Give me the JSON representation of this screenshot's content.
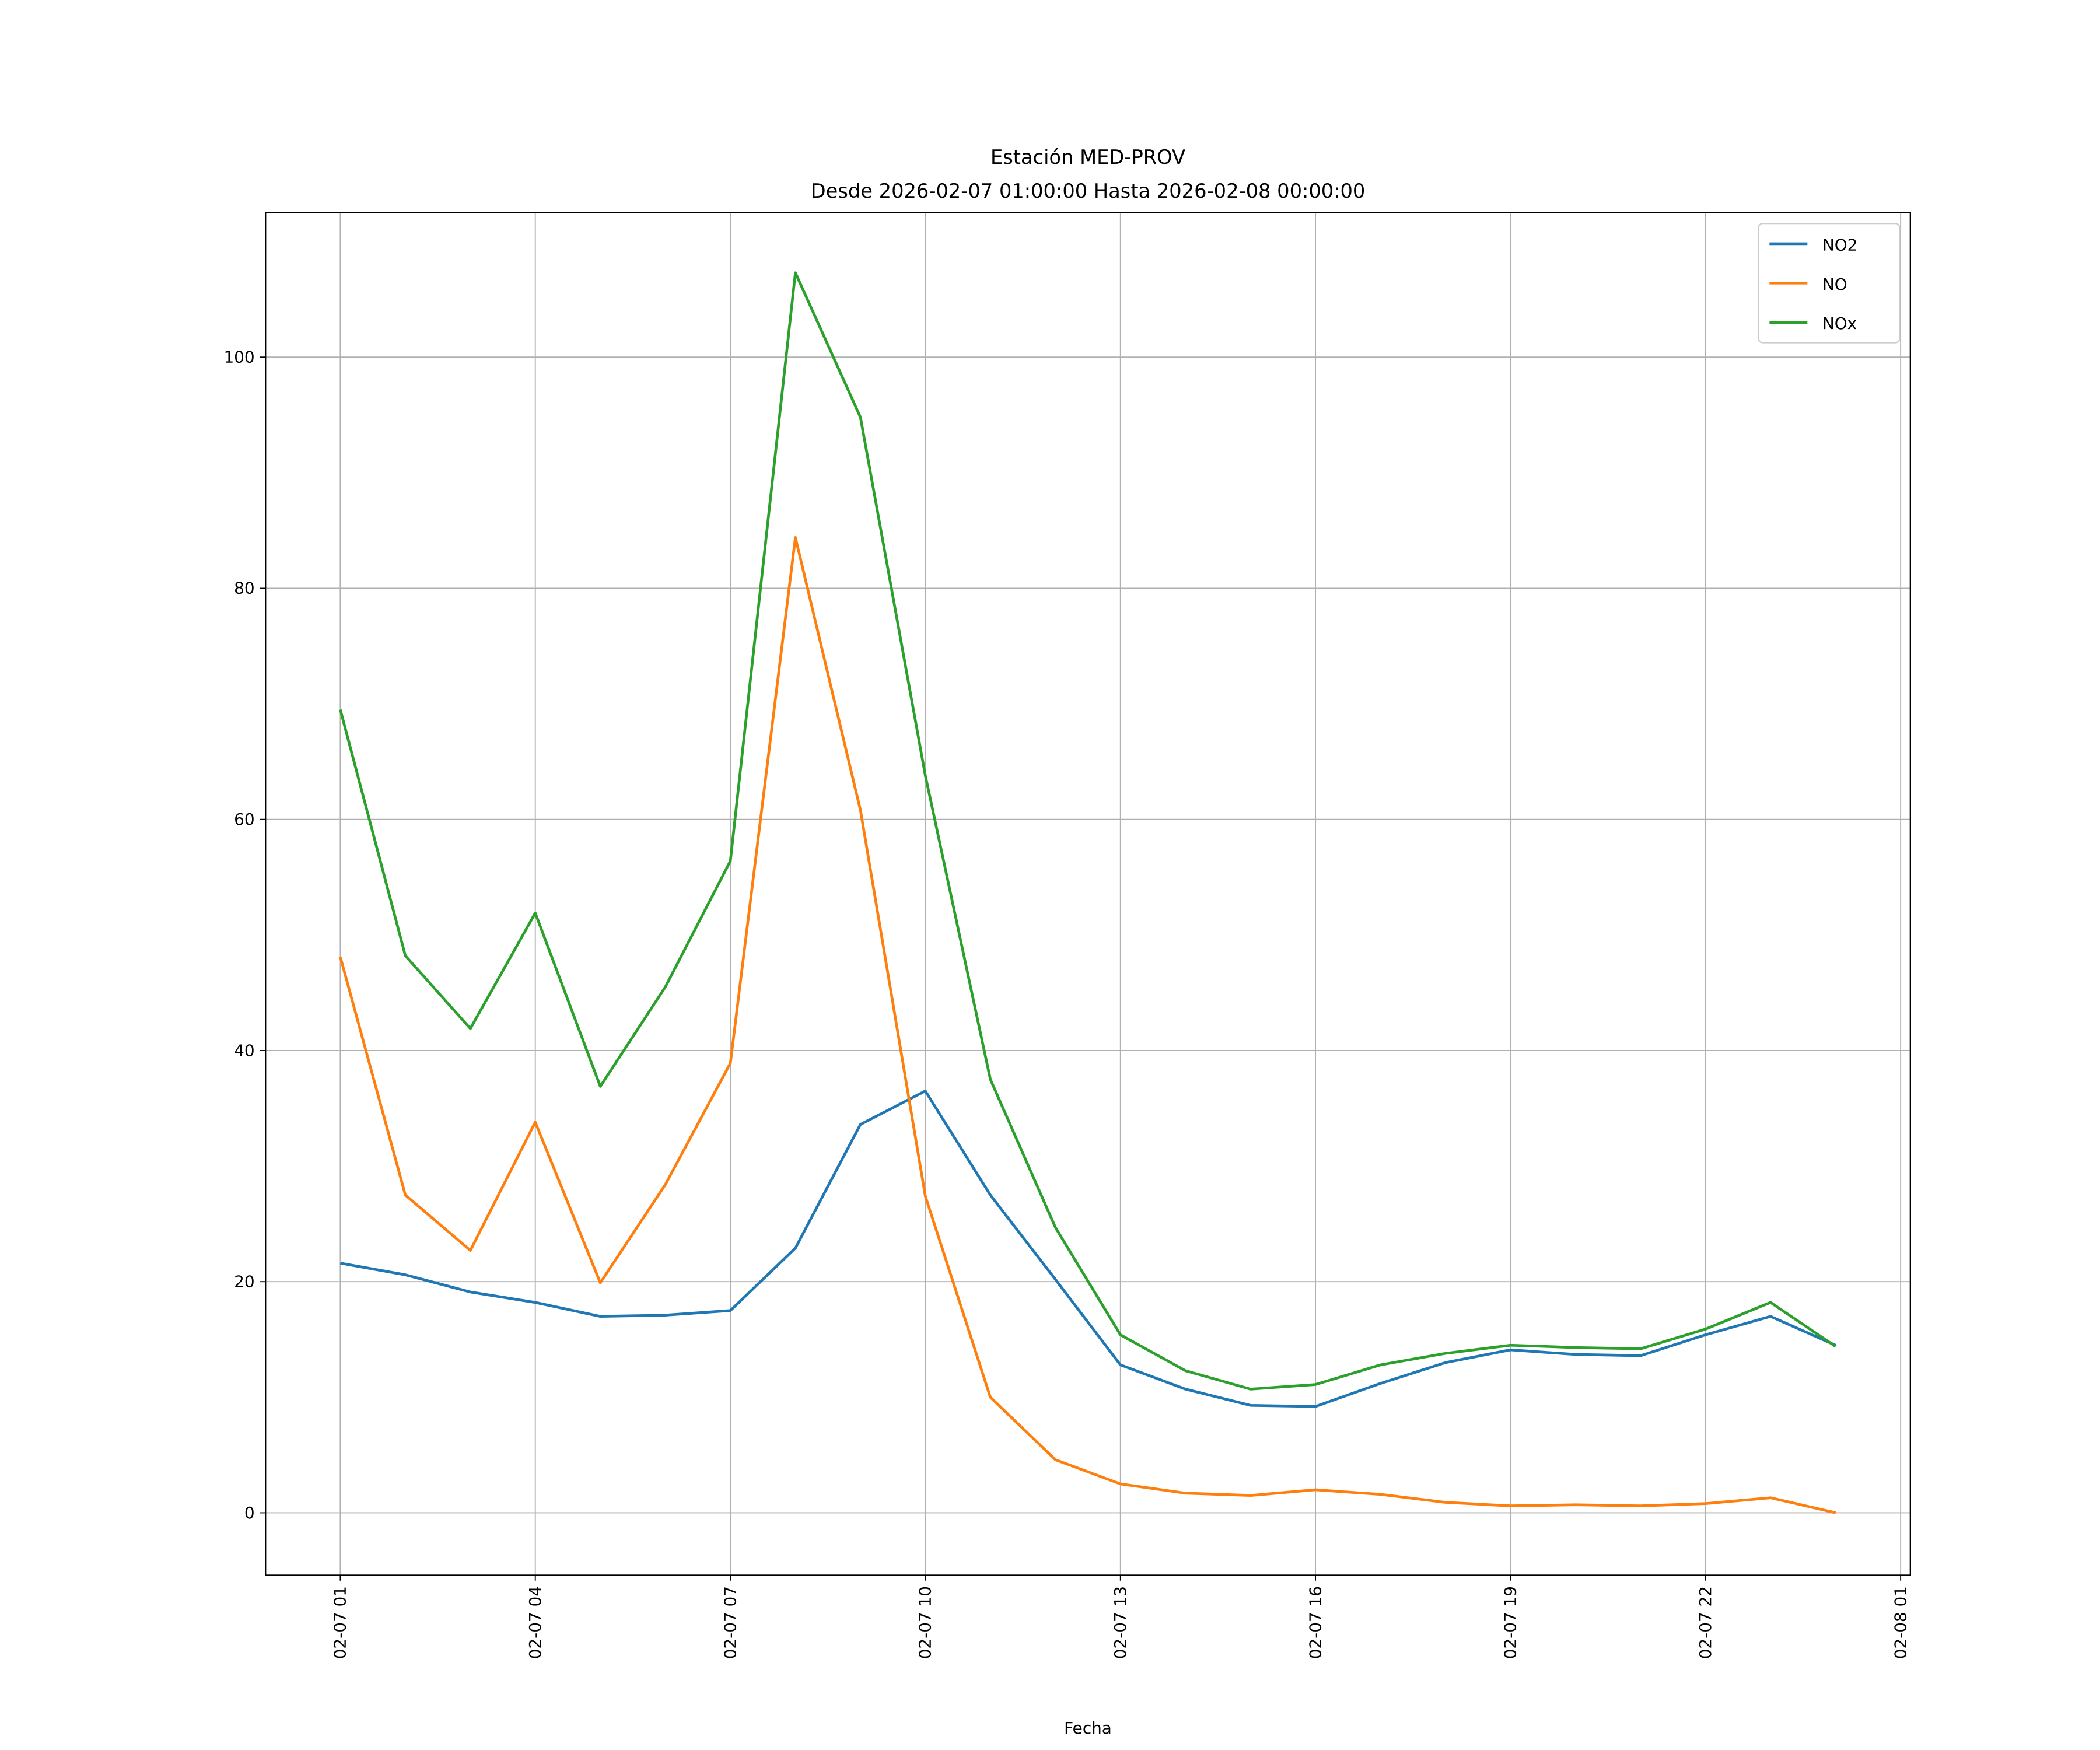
{
  "chart_data": {
    "type": "line",
    "title": "Estación MED-PROV",
    "subtitle": "Desde 2026-02-07 01:00:00 Hasta 2026-02-08 00:00:00",
    "xlabel": "Fecha",
    "ylabel": "",
    "x_hours": [
      1,
      2,
      3,
      4,
      5,
      6,
      7,
      8,
      9,
      10,
      11,
      12,
      13,
      14,
      15,
      16,
      17,
      18,
      19,
      20,
      21,
      22,
      23,
      24
    ],
    "xlim_hours": [
      -0.15,
      25.15
    ],
    "ylim": [
      -5.4,
      112.5
    ],
    "grid": true,
    "legend_position": "top-right",
    "x_ticks": [
      {
        "hour": 1,
        "label": "02-07 01"
      },
      {
        "hour": 4,
        "label": "02-07 04"
      },
      {
        "hour": 7,
        "label": "02-07 07"
      },
      {
        "hour": 10,
        "label": "02-07 10"
      },
      {
        "hour": 13,
        "label": "02-07 13"
      },
      {
        "hour": 16,
        "label": "02-07 16"
      },
      {
        "hour": 19,
        "label": "02-07 19"
      },
      {
        "hour": 22,
        "label": "02-07 22"
      },
      {
        "hour": 25,
        "label": "02-08 01"
      }
    ],
    "y_ticks": [
      {
        "value": 0,
        "label": "0"
      },
      {
        "value": 20,
        "label": "20"
      },
      {
        "value": 40,
        "label": "40"
      },
      {
        "value": 60,
        "label": "60"
      },
      {
        "value": 80,
        "label": "80"
      },
      {
        "value": 100,
        "label": "100"
      }
    ],
    "series": [
      {
        "name": "NO2",
        "color": "#1f77b4",
        "values": [
          21.6,
          20.6,
          19.1,
          18.2,
          17.0,
          17.1,
          17.5,
          22.9,
          33.6,
          36.5,
          27.5,
          20.2,
          12.8,
          10.7,
          9.3,
          9.2,
          11.2,
          13.0,
          14.1,
          13.7,
          13.6,
          15.4,
          17.0,
          14.5
        ]
      },
      {
        "name": "NO",
        "color": "#ff7f0e",
        "values": [
          48.1,
          27.5,
          22.7,
          33.8,
          19.9,
          28.4,
          38.9,
          84.4,
          60.8,
          27.4,
          10.0,
          4.6,
          2.5,
          1.7,
          1.5,
          2.0,
          1.6,
          0.9,
          0.6,
          0.7,
          0.6,
          0.8,
          1.3,
          0.0
        ]
      },
      {
        "name": "NOx",
        "color": "#2ca02c",
        "values": [
          69.5,
          48.2,
          41.9,
          51.9,
          36.9,
          45.5,
          56.4,
          107.3,
          94.8,
          63.8,
          37.5,
          24.7,
          15.4,
          12.3,
          10.7,
          11.1,
          12.8,
          13.8,
          14.5,
          14.3,
          14.2,
          15.9,
          18.2,
          14.4
        ]
      }
    ]
  }
}
